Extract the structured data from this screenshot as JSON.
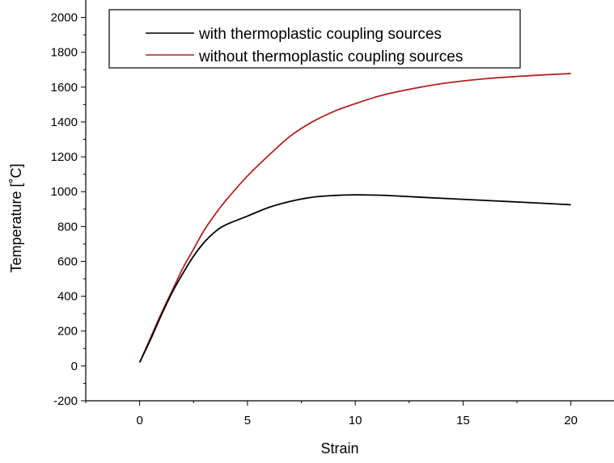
{
  "chart_data": {
    "type": "line",
    "title": "",
    "xlabel": "Strain",
    "ylabel": "Temperature [˚C]",
    "xlim": [
      -2.5,
      22
    ],
    "ylim": [
      -200,
      2100
    ],
    "x_ticks": [
      0,
      5,
      10,
      15,
      20
    ],
    "x_tick_labels": [
      "0",
      "5",
      "10",
      "15",
      "20"
    ],
    "y_ticks": [
      -200,
      0,
      200,
      400,
      600,
      800,
      1000,
      1200,
      1400,
      1600,
      1800,
      2000
    ],
    "y_tick_labels": [
      "-200",
      "0",
      "200",
      "400",
      "600",
      "800",
      "1000",
      "1200",
      "1400",
      "1600",
      "1800",
      "2000"
    ],
    "grid": false,
    "legend_position": "top",
    "series": [
      {
        "name": "with thermoplastic coupling sources",
        "color": "#000000",
        "x": [
          0,
          0.5,
          1,
          1.5,
          2,
          2.5,
          3,
          3.5,
          4,
          5,
          6,
          7,
          8,
          9,
          10,
          11,
          12,
          14,
          16,
          18,
          20
        ],
        "y": [
          20,
          150,
          290,
          420,
          530,
          630,
          710,
          770,
          810,
          860,
          910,
          945,
          968,
          978,
          982,
          980,
          975,
          962,
          950,
          938,
          925
        ]
      },
      {
        "name": "without thermoplastic coupling sources",
        "color": "#b22222",
        "x": [
          0,
          0.5,
          1,
          1.5,
          2,
          2.5,
          3,
          3.5,
          4,
          5,
          6,
          7,
          8,
          9,
          10,
          11,
          12,
          14,
          16,
          18,
          20
        ],
        "y": [
          20,
          160,
          300,
          430,
          560,
          670,
          780,
          870,
          950,
          1090,
          1210,
          1320,
          1400,
          1460,
          1505,
          1545,
          1575,
          1620,
          1648,
          1665,
          1678
        ]
      }
    ]
  }
}
